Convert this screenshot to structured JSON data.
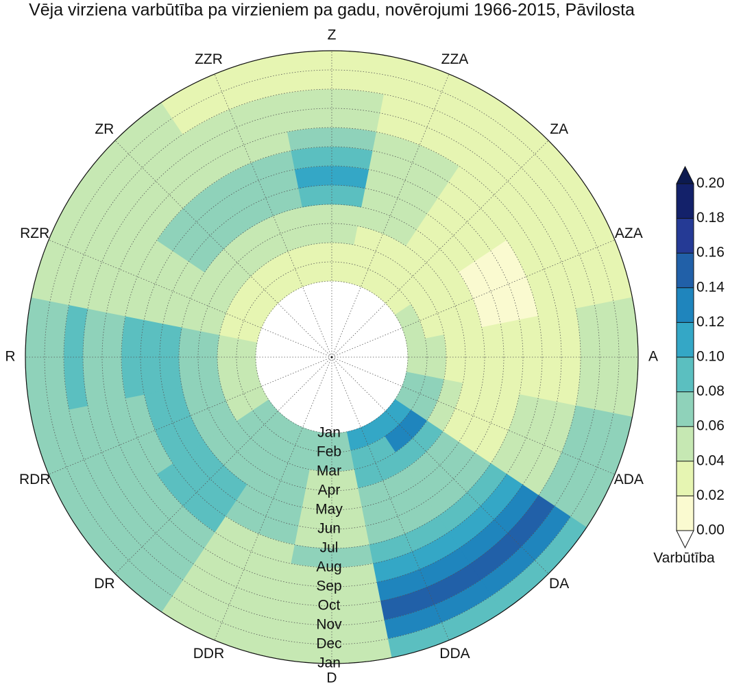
{
  "chart_data": {
    "type": "polar_contour",
    "title": "Vēja virziena varbūtība pa virzieniem pa gadu, novērojumi 1966-2015, Pāvilosta",
    "directions": [
      "Z",
      "ZZA",
      "ZA",
      "AZA",
      "A",
      "ADA",
      "DA",
      "DDA",
      "D",
      "DDR",
      "DR",
      "RDR",
      "R",
      "RZR",
      "ZR",
      "ZZR"
    ],
    "radial_labels": [
      "Jan",
      "Feb",
      "Mar",
      "Apr",
      "May",
      "Jun",
      "Jul",
      "Aug",
      "Sep",
      "Oct",
      "Nov",
      "Dec",
      "Jan"
    ],
    "values": [
      [
        0.03,
        0.03,
        0.05,
        0.05,
        0.09,
        0.11,
        0.09,
        0.07,
        0.05,
        0.05,
        0.03,
        0.03
      ],
      [
        0.03,
        0.03,
        0.03,
        0.05,
        0.05,
        0.05,
        0.05,
        0.05,
        0.03,
        0.03,
        0.03,
        0.03
      ],
      [
        0.03,
        0.03,
        0.03,
        0.03,
        0.03,
        0.03,
        0.03,
        0.03,
        0.03,
        0.03,
        0.03,
        0.03
      ],
      [
        0.05,
        0.03,
        0.03,
        0.03,
        0.01,
        0.01,
        0.01,
        0.03,
        0.03,
        0.03,
        0.03,
        0.03
      ],
      [
        0.05,
        0.05,
        0.03,
        0.03,
        0.03,
        0.03,
        0.03,
        0.03,
        0.03,
        0.05,
        0.05,
        0.05
      ],
      [
        0.07,
        0.07,
        0.05,
        0.03,
        0.03,
        0.03,
        0.05,
        0.05,
        0.05,
        0.07,
        0.07,
        0.07
      ],
      [
        0.11,
        0.13,
        0.09,
        0.07,
        0.07,
        0.07,
        0.09,
        0.11,
        0.13,
        0.15,
        0.13,
        0.09
      ],
      [
        0.11,
        0.09,
        0.09,
        0.07,
        0.07,
        0.07,
        0.09,
        0.11,
        0.13,
        0.15,
        0.13,
        0.09
      ],
      [
        0.07,
        0.07,
        0.05,
        0.05,
        0.05,
        0.05,
        0.07,
        0.05,
        0.05,
        0.05,
        0.05,
        0.05
      ],
      [
        0.07,
        0.07,
        0.07,
        0.07,
        0.07,
        0.07,
        0.05,
        0.05,
        0.05,
        0.05,
        0.05,
        0.05
      ],
      [
        0.07,
        0.07,
        0.07,
        0.07,
        0.09,
        0.09,
        0.09,
        0.07,
        0.07,
        0.07,
        0.07,
        0.07
      ],
      [
        0.05,
        0.05,
        0.07,
        0.07,
        0.09,
        0.09,
        0.07,
        0.07,
        0.07,
        0.07,
        0.07,
        0.07
      ],
      [
        0.05,
        0.05,
        0.07,
        0.07,
        0.09,
        0.09,
        0.09,
        0.07,
        0.07,
        0.09,
        0.07,
        0.07
      ],
      [
        0.03,
        0.03,
        0.05,
        0.05,
        0.05,
        0.05,
        0.05,
        0.05,
        0.05,
        0.05,
        0.05,
        0.05
      ],
      [
        0.03,
        0.03,
        0.05,
        0.05,
        0.07,
        0.07,
        0.07,
        0.05,
        0.05,
        0.05,
        0.05,
        0.05
      ],
      [
        0.03,
        0.03,
        0.05,
        0.05,
        0.07,
        0.07,
        0.07,
        0.05,
        0.05,
        0.05,
        0.03,
        0.03
      ]
    ],
    "grid": true,
    "colorbar": {
      "label": "Varbūtība",
      "ticks": [
        {
          "value": 0,
          "label": "0.00"
        },
        {
          "value": 0.02,
          "label": "0.02"
        },
        {
          "value": 0.04,
          "label": "0.04"
        },
        {
          "value": 0.06,
          "label": "0.06"
        },
        {
          "value": 0.08,
          "label": "0.08"
        },
        {
          "value": 0.1,
          "label": "0.10"
        },
        {
          "value": 0.12,
          "label": "0.12"
        },
        {
          "value": 0.14,
          "label": "0.14"
        },
        {
          "value": 0.16,
          "label": "0.16"
        },
        {
          "value": 0.18,
          "label": "0.18"
        },
        {
          "value": 0.2,
          "label": "0.20"
        }
      ],
      "colors": [
        "#fafad0",
        "#e6f5b2",
        "#c6e8b3",
        "#8fd2ba",
        "#5bbfc0",
        "#34a7c6",
        "#1f85bd",
        "#2160a8",
        "#253a95",
        "#13216a"
      ],
      "under_color": "#ffffff",
      "over_color": "#0c1a50"
    }
  }
}
